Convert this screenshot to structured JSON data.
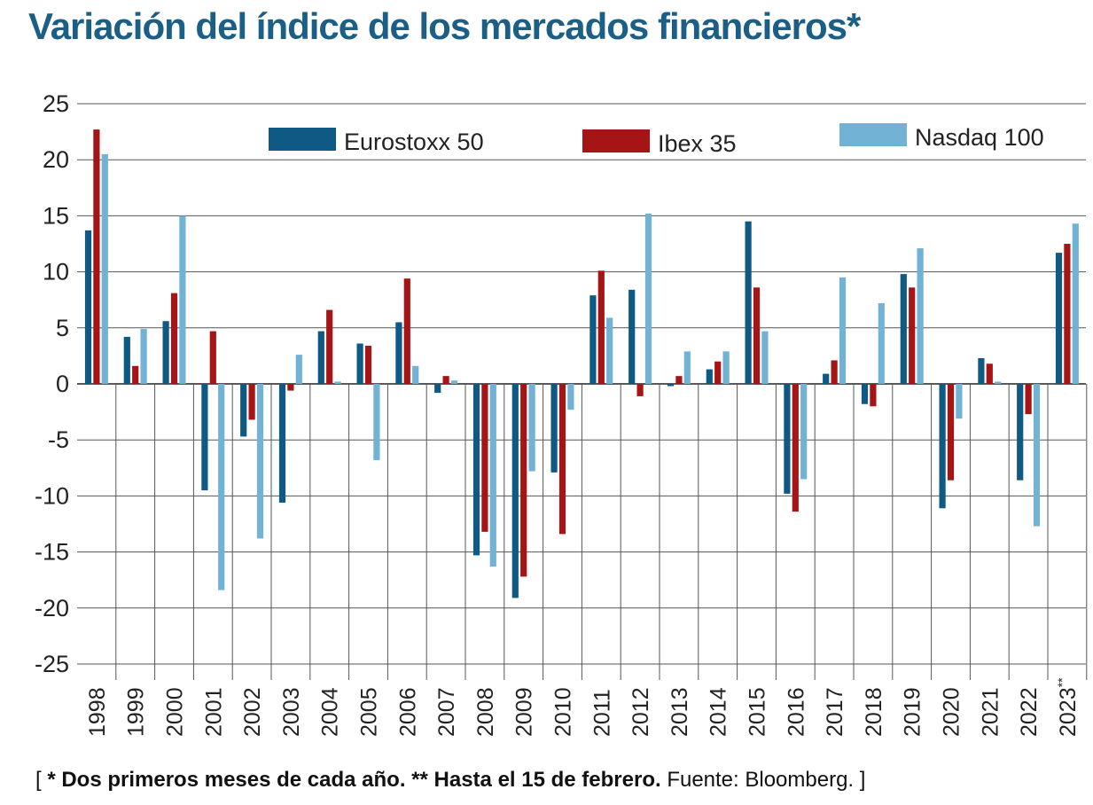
{
  "title": "Variación del índice de los mercados financieros*",
  "footnote": {
    "open": "[",
    "bold": "* Dos primeros meses de cada año. ** Hasta el 15 de febrero.",
    "source": "Fuente: Bloomberg.",
    "close": "]"
  },
  "chart_data": {
    "type": "bar",
    "title": "Variación del índice de los mercados financieros*",
    "categories": [
      "1998",
      "1999",
      "2000",
      "2001",
      "2002",
      "2003",
      "2004",
      "2005",
      "2006",
      "2007",
      "2008",
      "2009",
      "2010",
      "2011",
      "2012",
      "2013",
      "2014",
      "2015",
      "2016",
      "2017",
      "2018",
      "2019",
      "2020",
      "2021",
      "2022",
      "2023"
    ],
    "category_marks": {
      "2023": "**"
    },
    "ylim": [
      -25,
      25
    ],
    "yticks": [
      25,
      20,
      15,
      10,
      5,
      0,
      -5,
      -10,
      -15,
      -20,
      -25
    ],
    "grid": true,
    "legend_position": "top",
    "series": [
      {
        "name": "Eurostoxx 50",
        "color": "#0e5a84",
        "values": [
          13.7,
          4.2,
          5.6,
          -9.5,
          -4.7,
          -10.6,
          4.7,
          3.6,
          5.5,
          -0.8,
          -15.3,
          -19.1,
          -7.9,
          7.9,
          8.4,
          -0.2,
          1.3,
          14.5,
          -9.8,
          0.9,
          -1.8,
          9.8,
          -11.1,
          2.3,
          -8.6,
          11.7
        ]
      },
      {
        "name": "Ibex 35",
        "color": "#a51515",
        "values": [
          22.7,
          1.6,
          8.1,
          4.7,
          -3.2,
          -0.6,
          6.6,
          3.4,
          9.4,
          0.7,
          -13.2,
          -17.2,
          -13.4,
          10.1,
          -1.1,
          0.7,
          2.0,
          8.6,
          -11.4,
          2.1,
          -2.0,
          8.6,
          -8.6,
          1.8,
          -2.7,
          12.5
        ]
      },
      {
        "name": "Nasdaq 100",
        "color": "#72b2d5",
        "values": [
          20.5,
          4.9,
          15.0,
          -18.4,
          -13.8,
          2.6,
          0.2,
          -6.8,
          1.6,
          0.3,
          -16.3,
          -7.8,
          -2.3,
          5.9,
          15.2,
          2.9,
          2.9,
          4.7,
          -8.5,
          9.5,
          7.2,
          12.1,
          -3.1,
          0.2,
          -12.7,
          14.3
        ]
      }
    ]
  }
}
